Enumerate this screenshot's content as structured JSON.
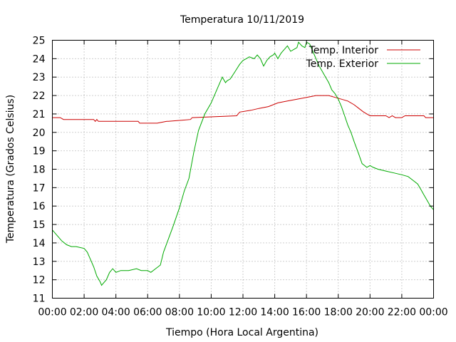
{
  "chart_data": {
    "type": "line",
    "title": "Temperatura 10/11/2019",
    "xlabel": "Tiempo (Hora Local Argentina)",
    "ylabel": "Temperatura (Grados Celsius)",
    "xlim": [
      0,
      24
    ],
    "ylim": [
      11,
      25
    ],
    "grid": true,
    "legend_position": "top-right",
    "x_ticks": [
      0,
      2,
      4,
      6,
      8,
      10,
      12,
      14,
      16,
      18,
      20,
      22,
      24
    ],
    "x_tick_labels": [
      "00:00",
      "02:00",
      "04:00",
      "06:00",
      "08:00",
      "10:00",
      "12:00",
      "14:00",
      "16:00",
      "18:00",
      "20:00",
      "22:00",
      "00:00"
    ],
    "y_ticks": [
      11,
      12,
      13,
      14,
      15,
      16,
      17,
      18,
      19,
      20,
      21,
      22,
      23,
      24,
      25
    ],
    "y_tick_labels": [
      "11",
      "12",
      "13",
      "14",
      "15",
      "16",
      "17",
      "18",
      "19",
      "20",
      "21",
      "22",
      "23",
      "24",
      "25"
    ],
    "series": [
      {
        "name": "Temp. Interior",
        "color": "#cc0000",
        "x": [
          0,
          0.5,
          0.7,
          0.9,
          2.6,
          2.7,
          2.8,
          2.9,
          5.4,
          5.5,
          6.6,
          7.2,
          7.3,
          8.7,
          8.8,
          11.6,
          11.8,
          12.5,
          13.0,
          13.6,
          14.2,
          14.8,
          15.4,
          16.0,
          16.6,
          17.4,
          17.8,
          18.2,
          18.6,
          19.0,
          19.3,
          19.6,
          19.8,
          20.0,
          21.0,
          21.2,
          21.4,
          21.6,
          22.0,
          22.2,
          23.4,
          23.5,
          24.0
        ],
        "values": [
          20.8,
          20.8,
          20.7,
          20.7,
          20.7,
          20.6,
          20.7,
          20.6,
          20.6,
          20.5,
          20.5,
          20.6,
          20.6,
          20.7,
          20.8,
          20.9,
          21.1,
          21.2,
          21.3,
          21.4,
          21.6,
          21.7,
          21.8,
          21.9,
          22.0,
          22.0,
          21.9,
          21.8,
          21.7,
          21.5,
          21.3,
          21.1,
          21.0,
          20.9,
          20.9,
          20.8,
          20.9,
          20.8,
          20.8,
          20.9,
          20.9,
          20.8,
          20.8
        ]
      },
      {
        "name": "Temp. Exterior",
        "color": "#00aa00",
        "x": [
          0,
          0.3,
          0.6,
          0.9,
          1.2,
          1.5,
          2.0,
          2.2,
          2.4,
          2.6,
          2.8,
          3.0,
          3.1,
          3.2,
          3.4,
          3.6,
          3.8,
          4.0,
          4.3,
          4.8,
          5.3,
          5.6,
          6.0,
          6.2,
          6.5,
          6.8,
          7.0,
          7.3,
          7.6,
          8.0,
          8.3,
          8.6,
          8.9,
          9.2,
          9.6,
          10.0,
          10.4,
          10.7,
          10.9,
          11.0,
          11.2,
          11.5,
          11.8,
          12.0,
          12.2,
          12.4,
          12.7,
          12.9,
          13.1,
          13.3,
          13.5,
          13.7,
          13.9,
          14.0,
          14.2,
          14.4,
          14.6,
          14.8,
          15.0,
          15.2,
          15.4,
          15.5,
          15.7,
          15.9,
          16.0,
          16.2,
          16.4,
          16.6,
          16.8,
          17.0,
          17.2,
          17.4,
          17.6,
          17.8,
          18.0,
          18.2,
          18.4,
          18.6,
          18.8,
          19.0,
          19.3,
          19.5,
          19.8,
          20.0,
          20.2,
          20.5,
          21.0,
          21.5,
          22.0,
          22.4,
          22.7,
          23.0,
          23.2,
          23.4,
          23.6,
          23.8,
          24.0
        ],
        "values": [
          14.7,
          14.4,
          14.1,
          13.9,
          13.8,
          13.8,
          13.7,
          13.5,
          13.1,
          12.7,
          12.2,
          11.9,
          11.7,
          11.8,
          12.0,
          12.4,
          12.6,
          12.4,
          12.5,
          12.5,
          12.6,
          12.5,
          12.5,
          12.4,
          12.6,
          12.8,
          13.5,
          14.2,
          14.9,
          15.9,
          16.8,
          17.5,
          18.9,
          20.1,
          21.0,
          21.6,
          22.4,
          23.0,
          22.7,
          22.8,
          22.9,
          23.3,
          23.7,
          23.9,
          24.0,
          24.1,
          24.0,
          24.2,
          24.0,
          23.6,
          23.9,
          24.1,
          24.2,
          24.3,
          24.0,
          24.3,
          24.5,
          24.7,
          24.4,
          24.5,
          24.6,
          24.9,
          24.7,
          24.6,
          24.9,
          24.8,
          24.4,
          24.0,
          23.6,
          23.3,
          23.0,
          22.7,
          22.3,
          22.1,
          21.8,
          21.4,
          20.9,
          20.4,
          20.0,
          19.5,
          18.8,
          18.3,
          18.1,
          18.2,
          18.1,
          18.0,
          17.9,
          17.8,
          17.7,
          17.6,
          17.4,
          17.2,
          16.9,
          16.6,
          16.3,
          16.0,
          15.8
        ]
      }
    ]
  }
}
